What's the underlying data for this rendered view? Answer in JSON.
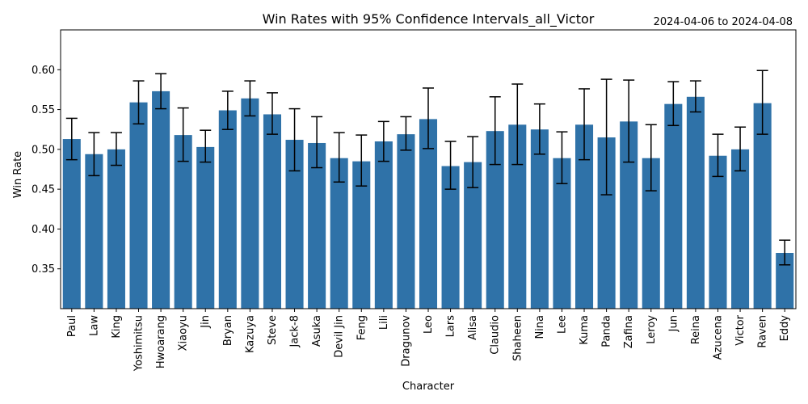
{
  "chart_data": {
    "type": "bar",
    "title": "Win Rates with 95% Confidence Intervals_all_Victor",
    "date_range": "2024-04-06 to 2024-04-08",
    "xlabel": "Character",
    "ylabel": "Win Rate",
    "ylim": [
      0.3,
      0.65
    ],
    "yticks": [
      "0.35",
      "0.40",
      "0.45",
      "0.50",
      "0.55",
      "0.60"
    ],
    "bar_color": "#2f72a8",
    "errorbar_color": "#000000",
    "grid": false,
    "categories": [
      "Paul",
      "Law",
      "King",
      "Yoshimitsu",
      "Hwoarang",
      "Xiaoyu",
      "Jin",
      "Bryan",
      "Kazuya",
      "Steve",
      "Jack-8",
      "Asuka",
      "Devil Jin",
      "Feng",
      "Lili",
      "Dragunov",
      "Leo",
      "Lars",
      "Alisa",
      "Claudio",
      "Shaheen",
      "Nina",
      "Lee",
      "Kuma",
      "Panda",
      "Zafina",
      "Leroy",
      "Jun",
      "Reina",
      "Azucena",
      "Victor",
      "Raven",
      "Eddy"
    ],
    "values": [
      0.513,
      0.494,
      0.5,
      0.559,
      0.573,
      0.518,
      0.503,
      0.549,
      0.564,
      0.544,
      0.512,
      0.508,
      0.489,
      0.485,
      0.51,
      0.519,
      0.538,
      0.479,
      0.484,
      0.523,
      0.531,
      0.525,
      0.489,
      0.531,
      0.515,
      0.535,
      0.489,
      0.557,
      0.566,
      0.492,
      0.5,
      0.558,
      0.37
    ],
    "ci_low": [
      0.487,
      0.467,
      0.48,
      0.532,
      0.551,
      0.485,
      0.484,
      0.525,
      0.542,
      0.519,
      0.473,
      0.477,
      0.459,
      0.454,
      0.485,
      0.499,
      0.501,
      0.45,
      0.452,
      0.481,
      0.481,
      0.494,
      0.457,
      0.487,
      0.443,
      0.484,
      0.448,
      0.53,
      0.547,
      0.466,
      0.473,
      0.519,
      0.355
    ],
    "ci_high": [
      0.539,
      0.521,
      0.521,
      0.586,
      0.595,
      0.552,
      0.524,
      0.573,
      0.586,
      0.571,
      0.551,
      0.541,
      0.521,
      0.518,
      0.535,
      0.541,
      0.577,
      0.51,
      0.516,
      0.566,
      0.582,
      0.557,
      0.522,
      0.576,
      0.588,
      0.587,
      0.531,
      0.585,
      0.586,
      0.519,
      0.528,
      0.599,
      0.386
    ]
  }
}
